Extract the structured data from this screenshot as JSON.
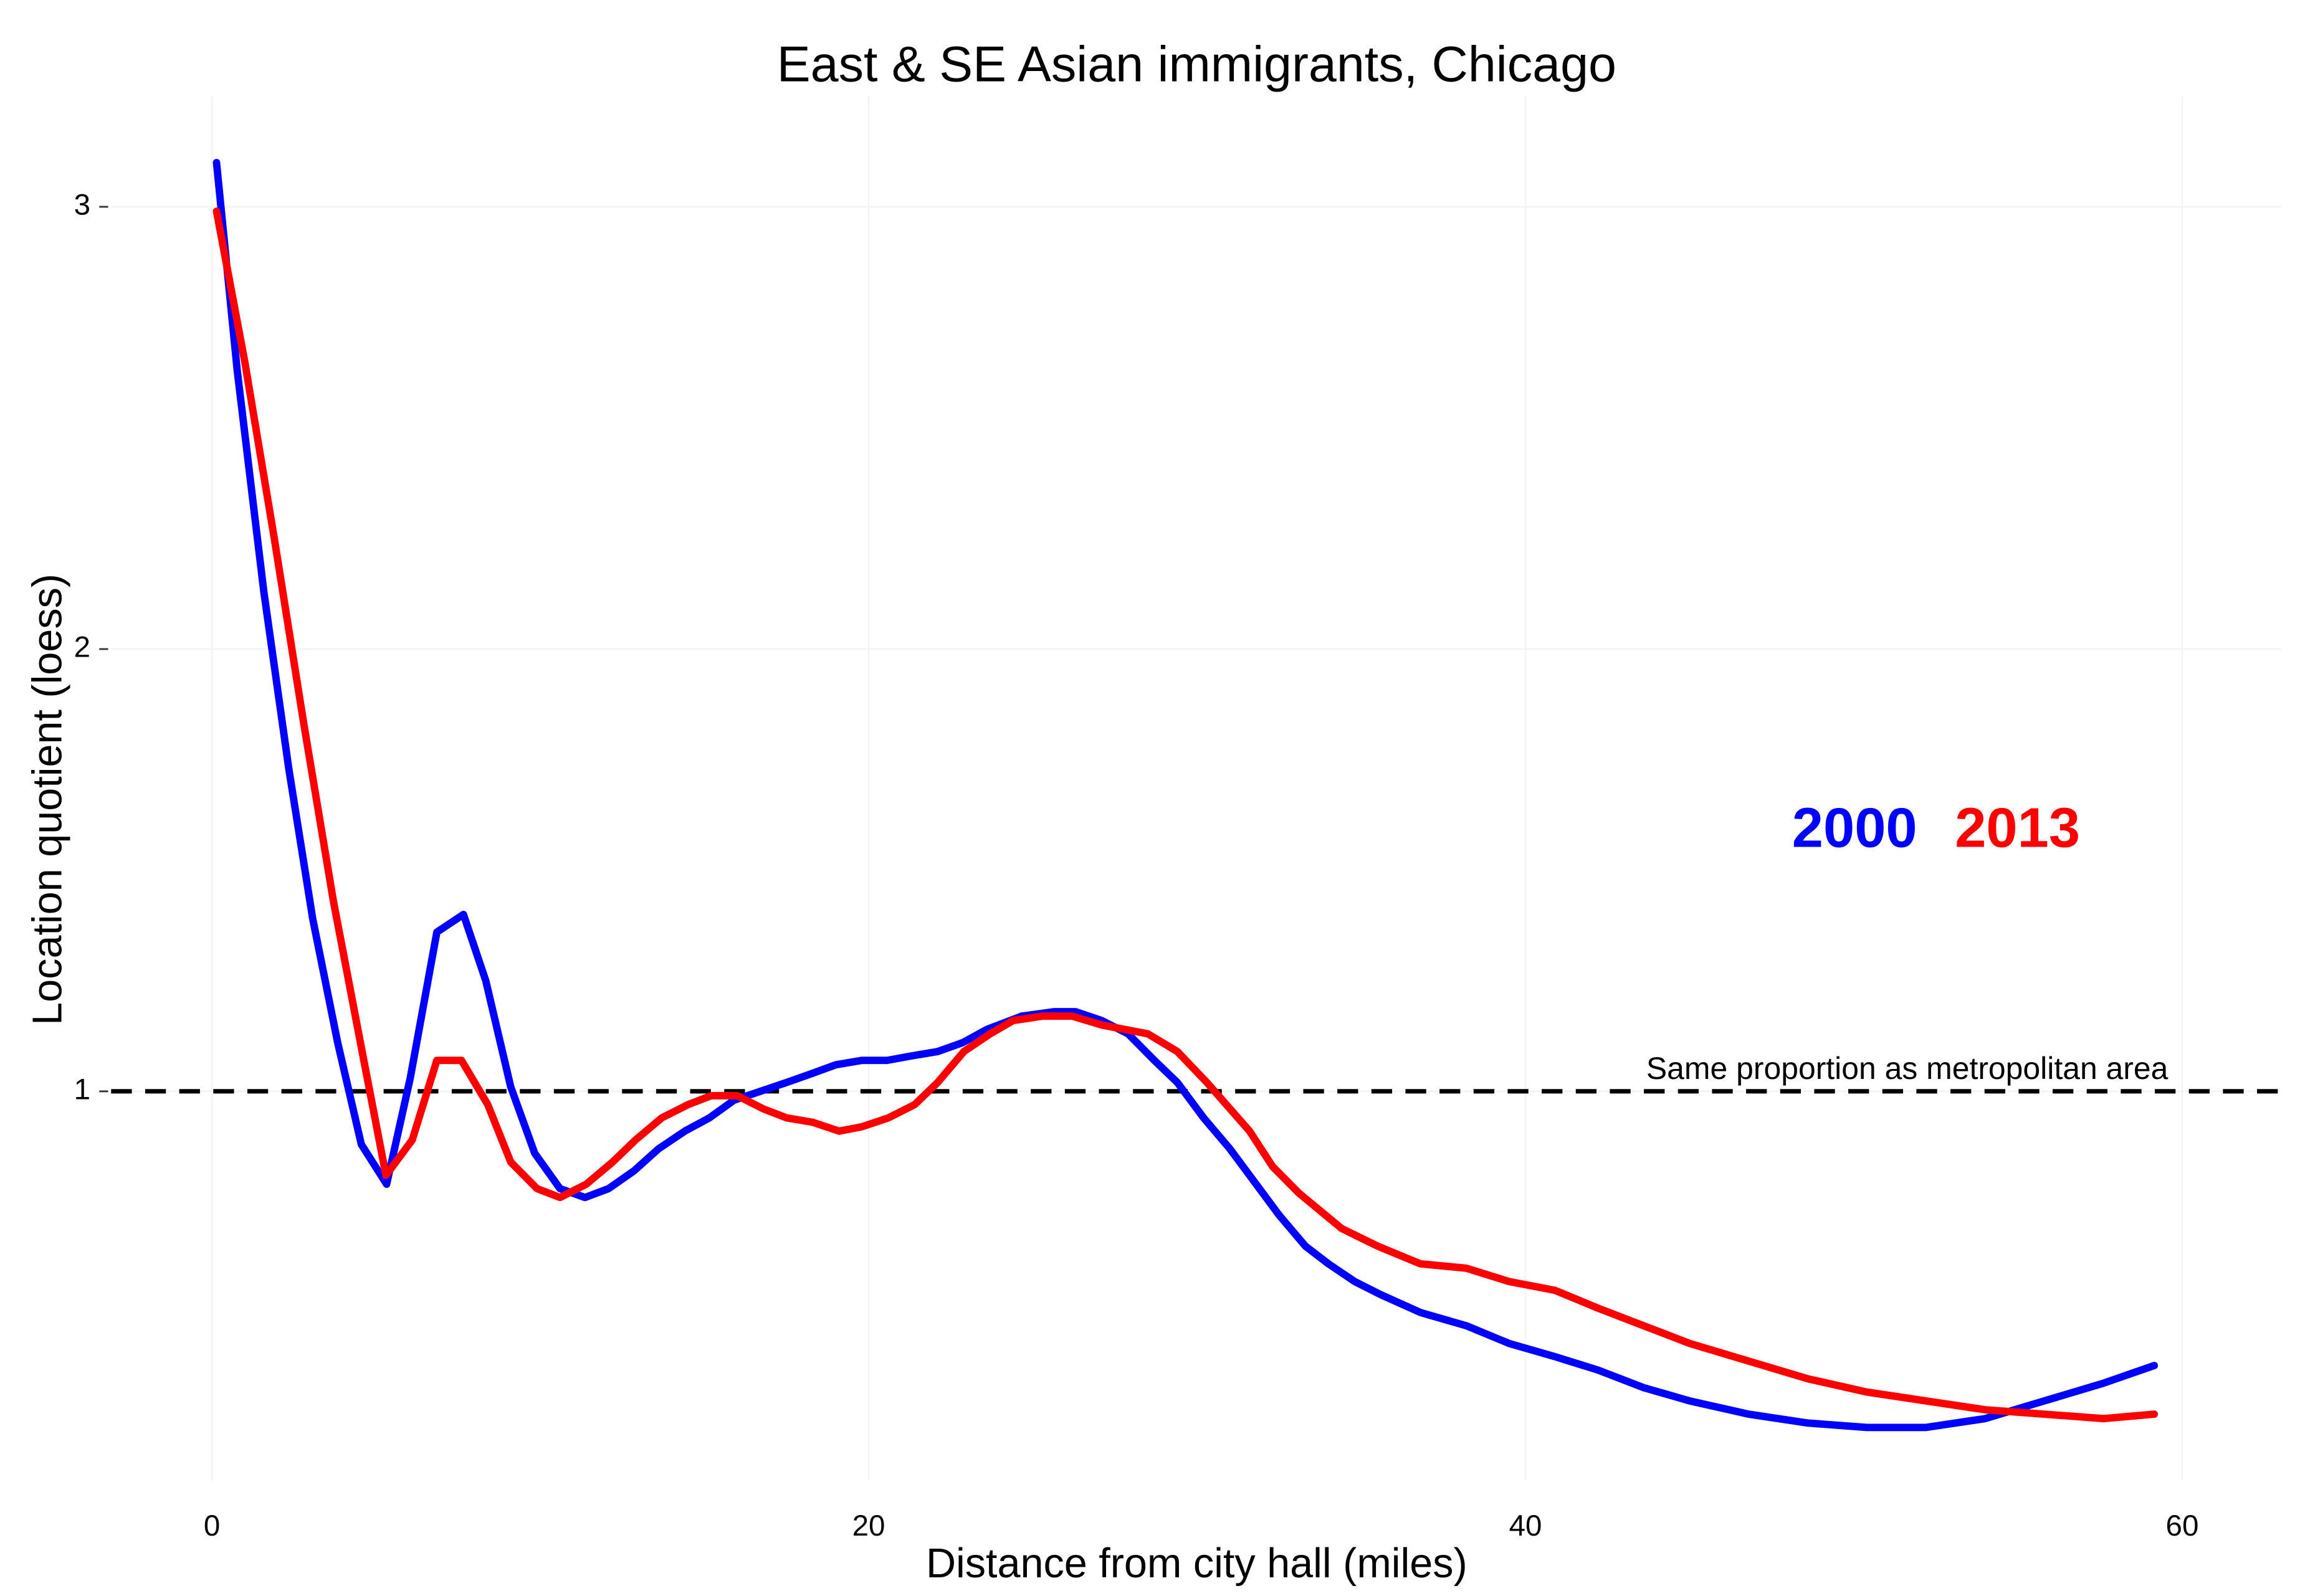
{
  "chart_data": {
    "type": "line",
    "title": "East & SE Asian immigrants, Chicago",
    "x_label": "Distance from city hall (miles)",
    "y_label": "Location quotient (loess)",
    "xlim": [
      -3.07,
      63
    ],
    "ylim": [
      0.12,
      3.25
    ],
    "xticks": [
      0,
      20,
      40,
      60
    ],
    "yticks": [
      1,
      2,
      3
    ],
    "grid": true,
    "reference_line": {
      "value": 1,
      "label": "Same proportion as metropolitan area"
    },
    "series": [
      {
        "name": "2000",
        "color": "#0000ff",
        "x": [
          0.14,
          0.77,
          1.58,
          2.34,
          3.07,
          3.83,
          4.55,
          5.32,
          6.04,
          6.85,
          7.66,
          8.34,
          9.1,
          9.83,
          10.6,
          11.36,
          12.08,
          12.85,
          13.6,
          14.4,
          15.15,
          15.9,
          16.7,
          17.5,
          18.26,
          19.0,
          19.8,
          20.56,
          21.3,
          22.1,
          22.86,
          23.6,
          24.66,
          25.65,
          26.3,
          27.1,
          27.9,
          28.7,
          29.4,
          30.2,
          31.0,
          31.7,
          32.5,
          33.3,
          34.0,
          34.8,
          35.6,
          36.8,
          38.2,
          39.5,
          40.9,
          42.2,
          43.6,
          45.0,
          46.8,
          48.6,
          50.4,
          52.2,
          54.0,
          55.8,
          57.6,
          59.15
        ],
        "values": [
          3.1,
          2.63,
          2.13,
          1.73,
          1.39,
          1.11,
          0.88,
          0.79,
          1.03,
          1.36,
          1.4,
          1.25,
          1.01,
          0.86,
          0.78,
          0.76,
          0.78,
          0.82,
          0.87,
          0.91,
          0.94,
          0.98,
          1.0,
          1.02,
          1.04,
          1.06,
          1.07,
          1.07,
          1.08,
          1.09,
          1.11,
          1.14,
          1.17,
          1.18,
          1.18,
          1.16,
          1.13,
          1.07,
          1.02,
          0.94,
          0.87,
          0.8,
          0.72,
          0.65,
          0.61,
          0.57,
          0.54,
          0.5,
          0.47,
          0.43,
          0.4,
          0.37,
          0.33,
          0.3,
          0.27,
          0.25,
          0.24,
          0.24,
          0.26,
          0.3,
          0.34,
          0.38
        ]
      },
      {
        "name": "2013",
        "color": "#ff0000",
        "x": [
          0.14,
          1.0,
          1.9,
          2.8,
          3.7,
          4.6,
          5.3,
          6.1,
          6.85,
          7.6,
          8.4,
          9.1,
          9.9,
          10.6,
          11.4,
          12.2,
          12.9,
          13.7,
          14.5,
          15.2,
          16.0,
          16.8,
          17.5,
          18.3,
          19.1,
          19.8,
          20.6,
          21.4,
          22.1,
          22.9,
          23.7,
          24.4,
          25.3,
          26.2,
          27.1,
          28.5,
          29.4,
          30.3,
          31.6,
          32.3,
          33.1,
          34.4,
          35.5,
          36.8,
          38.2,
          39.5,
          40.9,
          42.2,
          43.6,
          45.0,
          46.8,
          48.6,
          50.4,
          52.2,
          54.0,
          55.8,
          57.6,
          59.15
        ],
        "values": [
          2.99,
          2.65,
          2.25,
          1.83,
          1.43,
          1.08,
          0.81,
          0.89,
          1.07,
          1.07,
          0.97,
          0.84,
          0.78,
          0.76,
          0.79,
          0.84,
          0.89,
          0.94,
          0.97,
          0.99,
          0.99,
          0.96,
          0.94,
          0.93,
          0.91,
          0.92,
          0.94,
          0.97,
          1.02,
          1.09,
          1.13,
          1.16,
          1.17,
          1.17,
          1.15,
          1.13,
          1.09,
          1.02,
          0.91,
          0.83,
          0.77,
          0.69,
          0.65,
          0.61,
          0.6,
          0.57,
          0.55,
          0.51,
          0.47,
          0.43,
          0.39,
          0.35,
          0.32,
          0.3,
          0.28,
          0.27,
          0.26,
          0.27
        ]
      }
    ]
  }
}
